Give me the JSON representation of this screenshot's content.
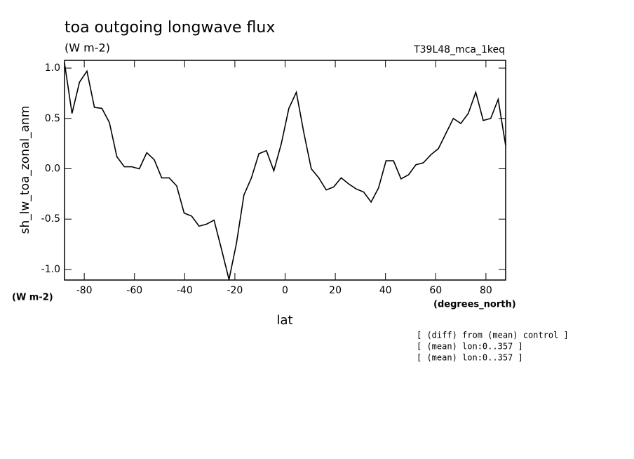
{
  "chart_data": {
    "type": "line",
    "title": "toa outgoing longwave flux",
    "subtitle": "(W m-2)",
    "dataset": "T39L48_mca_1keq",
    "y_label": "sh_lw_toa_zonal_anm",
    "y_units": "(W m-2)",
    "x_label": "lat",
    "x_units": "(degrees_north)",
    "notes": [
      "[ (diff) from (mean) control ]",
      "[ (mean) lon:0..357 ]",
      "[ (mean) lon:0..357 ]"
    ],
    "x": [
      -87.86,
      -84.88,
      -81.9,
      -78.93,
      -75.95,
      -72.97,
      -69.99,
      -67.01,
      -64.04,
      -61.06,
      -58.08,
      -55.1,
      -52.12,
      -49.15,
      -46.17,
      -43.19,
      -40.21,
      -37.23,
      -34.26,
      -31.28,
      -28.3,
      -25.32,
      -22.34,
      -19.37,
      -16.39,
      -13.41,
      -10.43,
      -7.45,
      -4.48,
      -1.5,
      1.5,
      4.48,
      7.45,
      10.43,
      13.41,
      16.39,
      19.37,
      22.34,
      25.32,
      28.3,
      31.28,
      34.26,
      37.23,
      40.21,
      43.19,
      46.17,
      49.15,
      52.12,
      55.1,
      58.08,
      61.06,
      64.04,
      67.01,
      69.99,
      72.97,
      75.95,
      78.93,
      81.9,
      84.88,
      87.86
    ],
    "series": [
      {
        "color": "#000000",
        "values": [
          1.05,
          0.55,
          0.86,
          0.97,
          0.61,
          0.6,
          0.46,
          0.12,
          0.02,
          0.02,
          0.0,
          0.16,
          0.09,
          -0.09,
          -0.09,
          -0.17,
          -0.44,
          -0.47,
          -0.57,
          -0.55,
          -0.51,
          -0.8,
          -1.1,
          -0.74,
          -0.26,
          -0.09,
          0.15,
          0.18,
          -0.02,
          0.25,
          0.6,
          0.76,
          0.36,
          0.0,
          -0.09,
          -0.21,
          -0.18,
          -0.09,
          -0.15,
          -0.2,
          -0.23,
          -0.33,
          -0.19,
          0.08,
          0.08,
          -0.1,
          -0.06,
          0.04,
          0.06,
          0.14,
          0.2,
          0.35,
          0.5,
          0.45,
          0.55,
          0.76,
          0.48,
          0.5,
          0.69,
          0.23
        ]
      }
    ],
    "xlim": [
      -87.86,
      87.86
    ],
    "ylim": [
      -1.105,
      1.077
    ],
    "xticks": [
      -80,
      -60,
      -40,
      -20,
      0,
      20,
      40,
      60,
      80
    ],
    "yticks": [
      {
        "value": -1,
        "label": "-1.0"
      },
      -0.5,
      {
        "value": 0,
        "label": "0.0"
      },
      0.5,
      {
        "value": 1,
        "label": "1.0"
      }
    ]
  }
}
